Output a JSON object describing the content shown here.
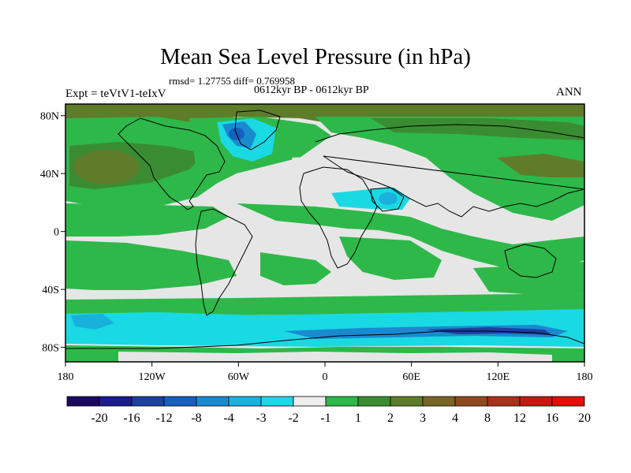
{
  "title": "Mean Sea Level Pressure (in hPa)",
  "stats": "rmsd= 1.27755 diff= 0.769958",
  "experiment": "Expt = teVtV1-teIxV",
  "period": "0612kyr BP - 0612kyr BP",
  "season": "ANN",
  "y_ticks": [
    {
      "value": 80,
      "label": "80N"
    },
    {
      "value": 40,
      "label": "40N"
    },
    {
      "value": 0,
      "label": "0"
    },
    {
      "value": -40,
      "label": "40S"
    },
    {
      "value": -80,
      "label": "80S"
    }
  ],
  "x_ticks": [
    {
      "value": -180,
      "label": "180"
    },
    {
      "value": -120,
      "label": "120W"
    },
    {
      "value": -60,
      "label": "60W"
    },
    {
      "value": 0,
      "label": "0"
    },
    {
      "value": 60,
      "label": "60E"
    },
    {
      "value": 120,
      "label": "120E"
    },
    {
      "value": 180,
      "label": "180"
    }
  ],
  "colorbar": {
    "colors": [
      "#1a0a5e",
      "#1c1c8f",
      "#1d3fa0",
      "#1560c0",
      "#1a8ad0",
      "#19b3df",
      "#1fd6e6",
      "#eeeeee",
      "#2eb84a",
      "#3a8c32",
      "#5e7c2a",
      "#7a6428",
      "#8e4a1e",
      "#a8321a",
      "#c41a10",
      "#e01008"
    ],
    "labels": [
      "-20",
      "-16",
      "-12",
      "-8",
      "-4",
      "-3",
      "-2",
      "-1",
      "1",
      "2",
      "3",
      "4",
      "8",
      "12",
      "16",
      "20"
    ]
  },
  "palette": {
    "grey": "#e6e6e6",
    "green": "#2eb84a",
    "darkgreen": "#3a8c32",
    "olive": "#5e7c2a",
    "lightcyan": "#19d9e3",
    "cyan": "#1ab0dc",
    "blue": "#1560c0"
  }
}
